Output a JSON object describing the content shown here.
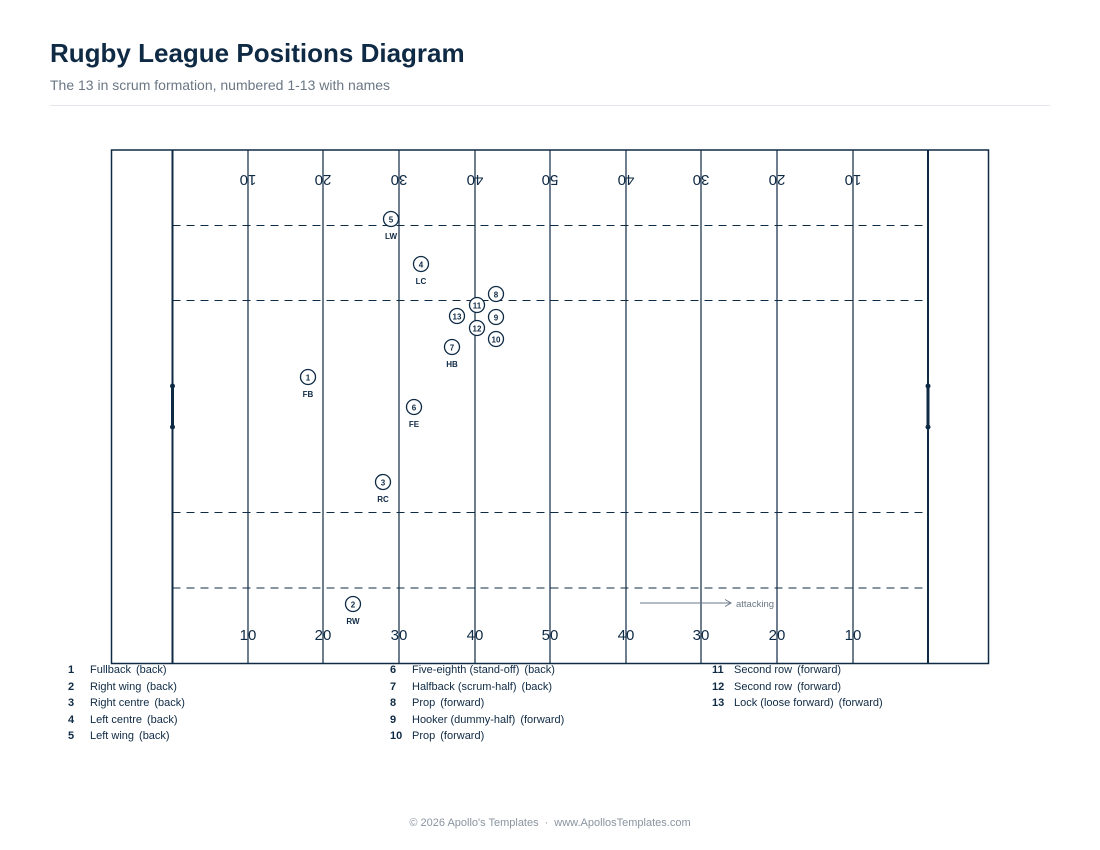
{
  "header": {
    "title": "Rugby League Positions Diagram",
    "subtitle": "The 13 in scrum formation, numbered 1-13 with names"
  },
  "colors": {
    "line": "#0f2a44",
    "muted": "#6b7785"
  },
  "field": {
    "yard_labels": [
      "10",
      "20",
      "30",
      "40",
      "50",
      "40",
      "30",
      "20",
      "10"
    ],
    "direction_label": "attacking"
  },
  "players": [
    {
      "number": "1",
      "abbr": "FB"
    },
    {
      "number": "2",
      "abbr": "RW"
    },
    {
      "number": "3",
      "abbr": "RC"
    },
    {
      "number": "4",
      "abbr": "LC"
    },
    {
      "number": "5",
      "abbr": "LW"
    },
    {
      "number": "6",
      "abbr": "FE"
    },
    {
      "number": "7",
      "abbr": "HB"
    },
    {
      "number": "8",
      "abbr": ""
    },
    {
      "number": "9",
      "abbr": ""
    },
    {
      "number": "10",
      "abbr": ""
    },
    {
      "number": "11",
      "abbr": ""
    },
    {
      "number": "12",
      "abbr": ""
    },
    {
      "number": "13",
      "abbr": ""
    }
  ],
  "legend": [
    {
      "number": "1",
      "name": "Fullback",
      "role": "(back)"
    },
    {
      "number": "2",
      "name": "Right wing",
      "role": "(back)"
    },
    {
      "number": "3",
      "name": "Right centre",
      "role": "(back)"
    },
    {
      "number": "4",
      "name": "Left centre",
      "role": "(back)"
    },
    {
      "number": "5",
      "name": "Left wing",
      "role": "(back)"
    },
    {
      "number": "6",
      "name": "Five-eighth (stand-off)",
      "role": "(back)"
    },
    {
      "number": "7",
      "name": "Halfback (scrum-half)",
      "role": "(back)"
    },
    {
      "number": "8",
      "name": "Prop",
      "role": "(forward)"
    },
    {
      "number": "9",
      "name": "Hooker (dummy-half)",
      "role": "(forward)"
    },
    {
      "number": "10",
      "name": "Prop",
      "role": "(forward)"
    },
    {
      "number": "11",
      "name": "Second row",
      "role": "(forward)"
    },
    {
      "number": "12",
      "name": "Second row",
      "role": "(forward)"
    },
    {
      "number": "13",
      "name": "Lock (loose forward)",
      "role": "(forward)"
    }
  ],
  "footer": {
    "copyright": "© 2026 Apollo's Templates",
    "separator": "·",
    "website": "www.ApollosTemplates.com"
  }
}
